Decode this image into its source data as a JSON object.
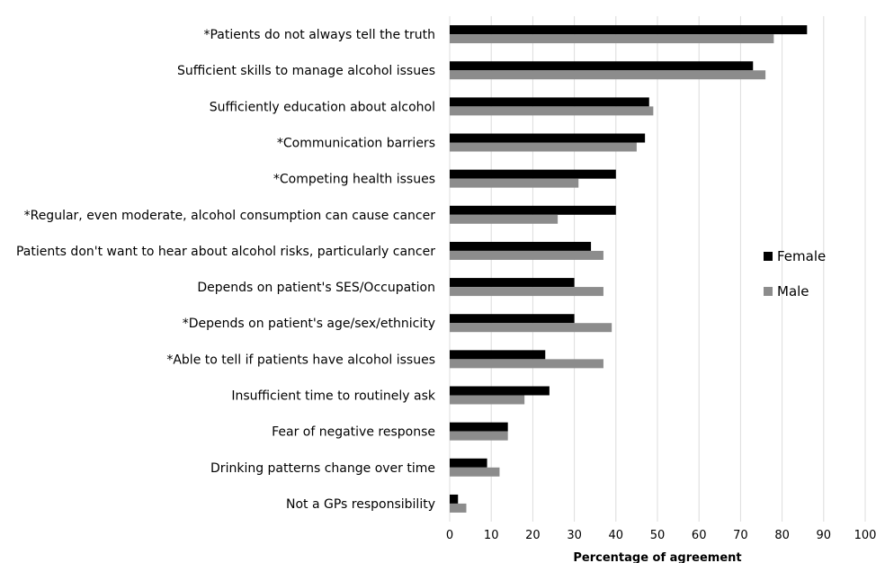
{
  "chart_data": {
    "type": "bar",
    "orientation": "horizontal",
    "categories": [
      "*Patients do not always tell the truth",
      "Sufficient skills to manage alcohol issues",
      "Sufficiently education about alcohol",
      "*Communication barriers",
      "*Competing health issues",
      "*Regular, even moderate, alcohol consumption can cause cancer",
      "Patients don't want to hear about alcohol risks, particularly cancer",
      "Depends on patient's SES/Occupation",
      "*Depends on patient's age/sex/ethnicity",
      "*Able to tell if patients have alcohol issues",
      "Insufficient time to routinely ask",
      "Fear of negative response",
      "Drinking patterns change over time",
      "Not a GPs responsibility"
    ],
    "series": [
      {
        "name": "Female",
        "color": "#000000",
        "values": [
          86,
          73,
          48,
          47,
          40,
          40,
          34,
          30,
          30,
          23,
          24,
          14,
          9,
          2
        ]
      },
      {
        "name": "Male",
        "color": "#8c8c8c",
        "values": [
          78,
          76,
          49,
          45,
          31,
          26,
          37,
          37,
          39,
          37,
          18,
          14,
          12,
          4
        ]
      }
    ],
    "xlabel": "Percentage of agreement",
    "ylabel": "",
    "xlim": [
      0,
      100
    ],
    "xticks": [
      0,
      10,
      20,
      30,
      40,
      50,
      60,
      70,
      80,
      90,
      100
    ],
    "grid": "vertical",
    "legend": "right"
  }
}
